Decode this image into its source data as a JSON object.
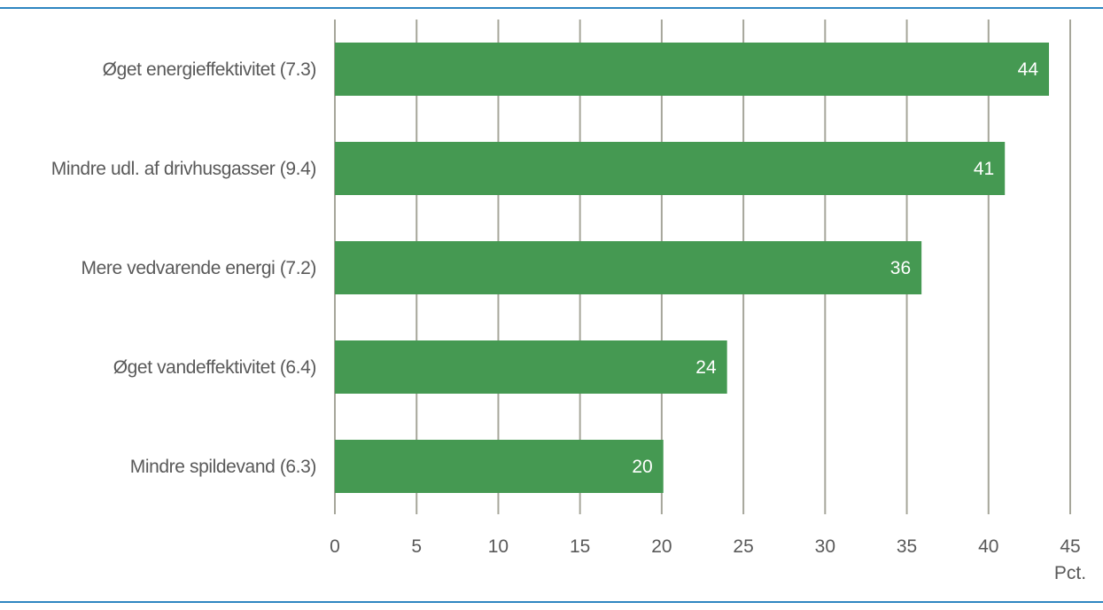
{
  "chart_data": {
    "type": "bar",
    "orientation": "horizontal",
    "categories": [
      "Øget energieffektivitet (7.3)",
      "Mindre udl. af drivhusgasser (9.4)",
      "Mere vedvarende energi (7.2)",
      "Øget vandeffektivitet (6.4)",
      "Mindre spildevand (6.3)"
    ],
    "values": [
      43.7,
      41,
      35.9,
      24,
      20.1
    ],
    "data_labels": [
      "44",
      "41",
      "36",
      "24",
      "20"
    ],
    "xlim": [
      0,
      45
    ],
    "xticks": [
      0,
      5,
      10,
      15,
      20,
      25,
      30,
      35,
      40,
      45
    ],
    "xunit": "Pct.",
    "grid": true,
    "colors": {
      "bar": "#459952",
      "grid": "#a6a69a",
      "rule": "#2e86c1",
      "text": "#595959",
      "value_text": "#ffffff"
    }
  }
}
